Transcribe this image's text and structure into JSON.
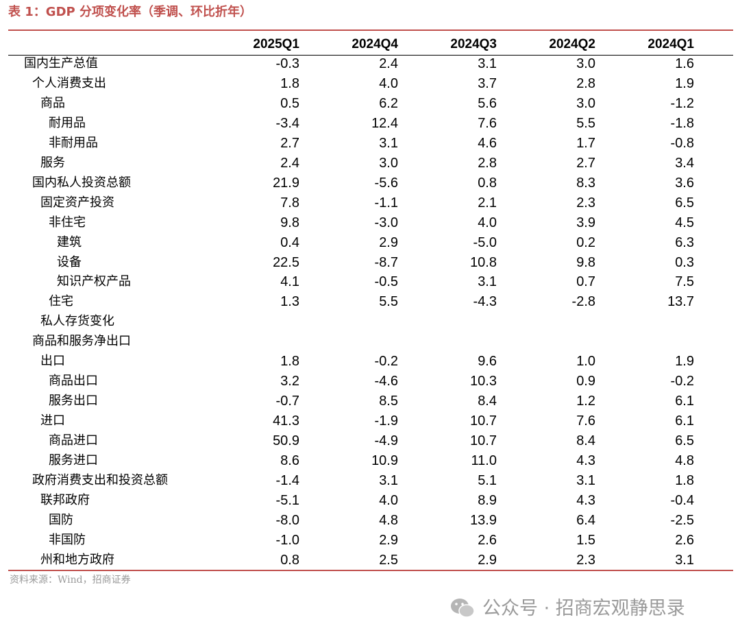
{
  "header": {
    "title": "表 1：GDP 分项变化率（季调、环比折年）"
  },
  "table": {
    "columns": [
      "2025Q1",
      "2024Q4",
      "2024Q3",
      "2024Q2",
      "2024Q1"
    ],
    "rows": [
      {
        "label": "国内生产总值",
        "values": [
          "-0.3",
          "2.4",
          "3.1",
          "3.0",
          "1.6"
        ]
      },
      {
        "label": "个人消费支出",
        "values": [
          "1.8",
          "4.0",
          "3.7",
          "2.8",
          "1.9"
        ]
      },
      {
        "label": "商品",
        "values": [
          "0.5",
          "6.2",
          "5.6",
          "3.0",
          "-1.2"
        ]
      },
      {
        "label": "耐用品",
        "values": [
          "-3.4",
          "12.4",
          "7.6",
          "5.5",
          "-1.8"
        ]
      },
      {
        "label": "非耐用品",
        "values": [
          "2.7",
          "3.1",
          "4.6",
          "1.7",
          "-0.8"
        ]
      },
      {
        "label": "服务",
        "values": [
          "2.4",
          "3.0",
          "2.8",
          "2.7",
          "3.4"
        ]
      },
      {
        "label": "国内私人投资总额",
        "values": [
          "21.9",
          "-5.6",
          "0.8",
          "8.3",
          "3.6"
        ]
      },
      {
        "label": "固定资产投资",
        "values": [
          "7.8",
          "-1.1",
          "2.1",
          "2.3",
          "6.5"
        ]
      },
      {
        "label": "非住宅",
        "values": [
          "9.8",
          "-3.0",
          "4.0",
          "3.9",
          "4.5"
        ]
      },
      {
        "label": "建筑",
        "values": [
          "0.4",
          "2.9",
          "-5.0",
          "0.2",
          "6.3"
        ]
      },
      {
        "label": "设备",
        "values": [
          "22.5",
          "-8.7",
          "10.8",
          "9.8",
          "0.3"
        ]
      },
      {
        "label": "知识产权产品",
        "values": [
          "4.1",
          "-0.5",
          "3.1",
          "0.7",
          "7.5"
        ]
      },
      {
        "label": "住宅",
        "values": [
          "1.3",
          "5.5",
          "-4.3",
          "-2.8",
          "13.7"
        ]
      },
      {
        "label": "私人存货变化"
      },
      {
        "label": "商品和服务净出口"
      },
      {
        "label": "出口",
        "values": [
          "1.8",
          "-0.2",
          "9.6",
          "1.0",
          "1.9"
        ]
      },
      {
        "label": "商品出口",
        "values": [
          "3.2",
          "-4.6",
          "10.3",
          "0.9",
          "-0.2"
        ]
      },
      {
        "label": "服务出口",
        "values": [
          "-0.7",
          "8.5",
          "8.4",
          "1.2",
          "6.1"
        ]
      },
      {
        "label": "进口",
        "values": [
          "41.3",
          "-1.9",
          "10.7",
          "7.6",
          "6.1"
        ]
      },
      {
        "label": "商品进口",
        "values": [
          "50.9",
          "-4.9",
          "10.7",
          "8.4",
          "6.5"
        ]
      },
      {
        "label": "服务进口",
        "values": [
          "8.6",
          "10.9",
          "11.0",
          "4.3",
          "4.8"
        ]
      },
      {
        "label": "政府消费支出和投资总额",
        "values": [
          "-1.4",
          "3.1",
          "5.1",
          "3.1",
          "1.8"
        ]
      },
      {
        "label": "联邦政府",
        "values": [
          "-5.1",
          "4.0",
          "8.9",
          "4.3",
          "-0.4"
        ]
      },
      {
        "label": "国防",
        "values": [
          "-8.0",
          "4.8",
          "13.9",
          "6.4",
          "-2.5"
        ]
      },
      {
        "label": "非国防",
        "values": [
          "-1.0",
          "2.9",
          "2.6",
          "1.5",
          "2.6"
        ]
      },
      {
        "label": "州和地方政府",
        "values": [
          "0.8",
          "2.5",
          "2.9",
          "2.3",
          "3.1"
        ]
      }
    ]
  },
  "footer": {
    "source": "资料来源：Wind，招商证券",
    "watermark": "公众号 · 招商宏观静思录"
  }
}
